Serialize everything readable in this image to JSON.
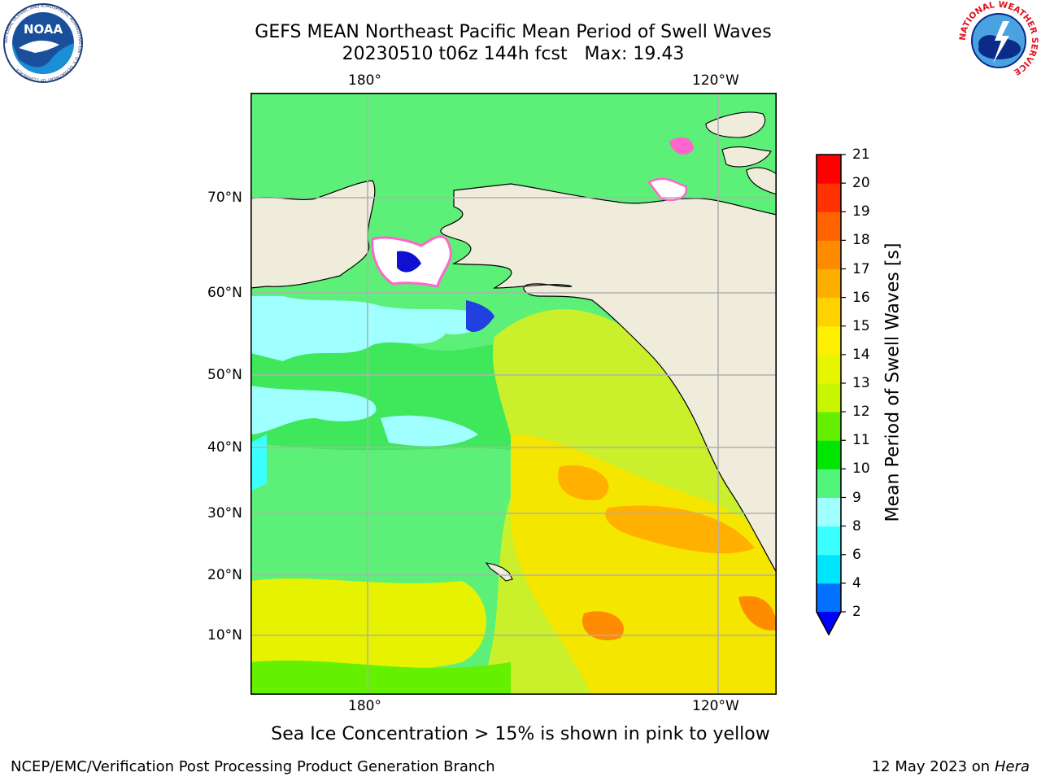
{
  "header": {
    "title_line1": "GEFS MEAN Northeast Pacific Mean Period of Swell Waves",
    "title_line2": "20230510 t06z 144h fcst   Max: 19.43"
  },
  "logos": {
    "noaa": {
      "text": "NOAA",
      "ring_text": "NATIONAL OCEANIC AND ATMOSPHERIC ADMINISTRATION · U.S. DEPARTMENT OF COMMERCE"
    },
    "nws": {
      "ring_text": "NATIONAL WEATHER SERVICE"
    }
  },
  "map": {
    "top_ticks": [
      "180°",
      "120°W"
    ],
    "bottom_ticks": [
      "180°",
      "120°W"
    ],
    "lat_ticks": [
      "70°N",
      "60°N",
      "50°N",
      "40°N",
      "30°N",
      "20°N",
      "10°N"
    ],
    "colors": {
      "land": "#efecdc",
      "grid": "#b0b0b0",
      "coast": "#000000"
    }
  },
  "colorbar": {
    "label": "Mean Period of Swell Waves [s]",
    "ticks": [
      "2",
      "4",
      "6",
      "8",
      "9",
      "10",
      "11",
      "12",
      "13",
      "14",
      "15",
      "16",
      "17",
      "18",
      "19",
      "20",
      "21"
    ],
    "colors": [
      "#0000ff",
      "#0070ff",
      "#00e5ff",
      "#3cffff",
      "#a0ffff",
      "#50f57a",
      "#00e600",
      "#64f000",
      "#c8f500",
      "#e6f500",
      "#fff000",
      "#ffd200",
      "#ffaf00",
      "#ff8c00",
      "#ff6400",
      "#ff3200",
      "#ff0000"
    ]
  },
  "note": "Sea Ice Concentration > 15% is shown in pink to yellow",
  "footer": {
    "left": "NCEP/EMC/Verification Post Processing Product Generation Branch",
    "right_date": "12 May 2023 on",
    "right_host": "Hera"
  }
}
